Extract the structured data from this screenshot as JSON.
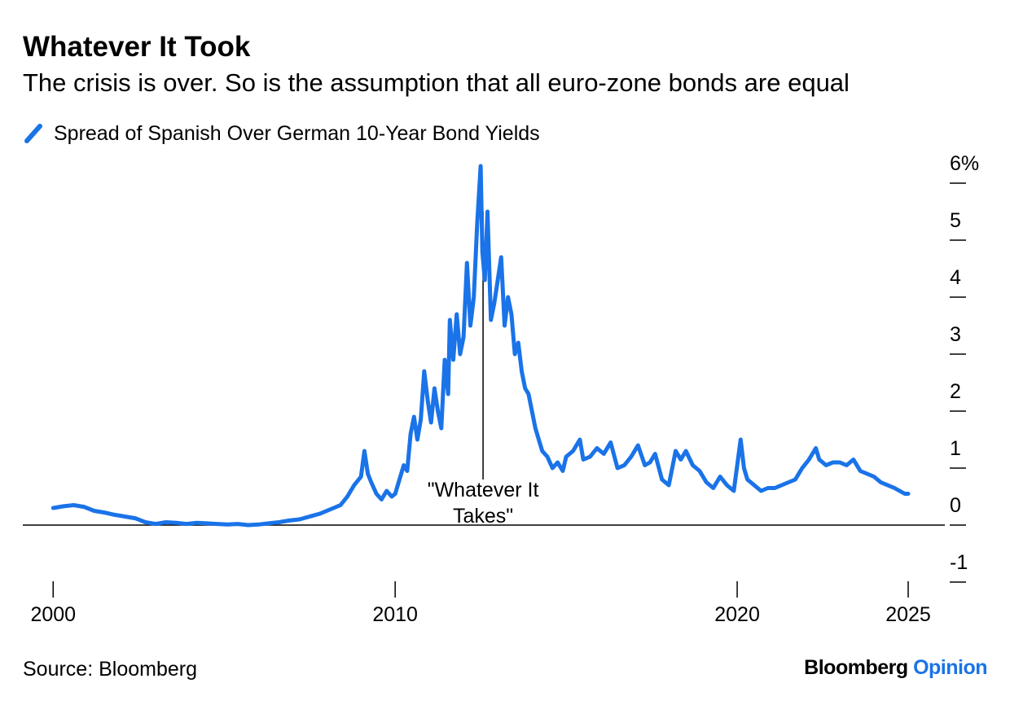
{
  "header": {
    "title": "Whatever It Took",
    "subtitle": "The crisis is over. So is the assumption that all euro-zone bonds are equal"
  },
  "legend": {
    "label": "Spread of Spanish Over German 10-Year Bond Yields"
  },
  "footer": {
    "source": "Source: Bloomberg",
    "brand_primary": "Bloomberg",
    "brand_secondary": "Opinion"
  },
  "colors": {
    "series": "#1a73e8",
    "axis": "#000000"
  },
  "chart_data": {
    "type": "line",
    "title": "Whatever It Took",
    "subtitle": "The crisis is over. So is the assumption that all euro-zone bonds are equal",
    "xlabel": "",
    "ylabel": "",
    "xlim": [
      1999.97,
      2025.0
    ],
    "ylim": [
      -1,
      6
    ],
    "y_axis_side": "right",
    "y_ticks": [
      {
        "value": 6,
        "label": "6%"
      },
      {
        "value": 5,
        "label": "5"
      },
      {
        "value": 4,
        "label": "4"
      },
      {
        "value": 3,
        "label": "3"
      },
      {
        "value": 2,
        "label": "2"
      },
      {
        "value": 1,
        "label": "1"
      },
      {
        "value": 0,
        "label": "0"
      },
      {
        "value": -1,
        "label": "-1"
      }
    ],
    "x_ticks": [
      {
        "value": 2000,
        "label": "2000"
      },
      {
        "value": 2010,
        "label": "2010"
      },
      {
        "value": 2020,
        "label": "2020"
      },
      {
        "value": 2025,
        "label": "2025"
      }
    ],
    "grid": false,
    "legend_position": "top-left",
    "annotations": [
      {
        "text_lines": [
          "\"Whatever It",
          "Takes\""
        ],
        "x": 2012.57,
        "y_top": 5.5,
        "y_bottom": 0.8
      }
    ],
    "series": [
      {
        "name": "Spread of Spanish Over German 10-Year Bond Yields",
        "x": [
          2000.0,
          2000.3,
          2000.6,
          2000.9,
          2001.2,
          2001.5,
          2001.8,
          2002.1,
          2002.4,
          2002.7,
          2003.0,
          2003.3,
          2003.6,
          2003.9,
          2004.2,
          2004.5,
          2004.8,
          2005.1,
          2005.4,
          2005.7,
          2006.0,
          2006.3,
          2006.6,
          2006.9,
          2007.2,
          2007.5,
          2007.8,
          2008.0,
          2008.2,
          2008.4,
          2008.6,
          2008.8,
          2009.0,
          2009.1,
          2009.2,
          2009.3,
          2009.45,
          2009.6,
          2009.75,
          2009.9,
          2010.0,
          2010.1,
          2010.25,
          2010.35,
          2010.45,
          2010.55,
          2010.65,
          2010.75,
          2010.85,
          2010.95,
          2011.05,
          2011.15,
          2011.25,
          2011.35,
          2011.45,
          2011.55,
          2011.6,
          2011.7,
          2011.8,
          2011.9,
          2012.0,
          2012.1,
          2012.2,
          2012.3,
          2012.4,
          2012.5,
          2012.55,
          2012.62,
          2012.7,
          2012.8,
          2012.9,
          2013.0,
          2013.1,
          2013.2,
          2013.3,
          2013.4,
          2013.5,
          2013.6,
          2013.7,
          2013.8,
          2013.9,
          2014.0,
          2014.1,
          2014.2,
          2014.3,
          2014.45,
          2014.6,
          2014.75,
          2014.9,
          2015.0,
          2015.2,
          2015.4,
          2015.5,
          2015.7,
          2015.9,
          2016.1,
          2016.3,
          2016.5,
          2016.7,
          2016.9,
          2017.1,
          2017.3,
          2017.45,
          2017.6,
          2017.8,
          2018.0,
          2018.2,
          2018.35,
          2018.5,
          2018.7,
          2018.9,
          2019.1,
          2019.3,
          2019.5,
          2019.7,
          2019.9,
          2020.1,
          2020.2,
          2020.3,
          2020.5,
          2020.7,
          2020.9,
          2021.1,
          2021.3,
          2021.5,
          2021.7,
          2021.9,
          2022.1,
          2022.3,
          2022.4,
          2022.6,
          2022.8,
          2023.0,
          2023.2,
          2023.4,
          2023.6,
          2023.8,
          2024.0,
          2024.2,
          2024.4,
          2024.6,
          2024.75,
          2024.9,
          2025.0
        ],
        "y": [
          0.3,
          0.33,
          0.35,
          0.32,
          0.25,
          0.22,
          0.18,
          0.15,
          0.12,
          0.05,
          0.02,
          0.05,
          0.04,
          0.02,
          0.04,
          0.03,
          0.02,
          0.01,
          0.02,
          0.0,
          0.01,
          0.03,
          0.05,
          0.08,
          0.1,
          0.15,
          0.2,
          0.25,
          0.3,
          0.35,
          0.5,
          0.7,
          0.85,
          1.3,
          0.9,
          0.75,
          0.55,
          0.45,
          0.6,
          0.5,
          0.55,
          0.75,
          1.05,
          0.95,
          1.6,
          1.9,
          1.5,
          1.85,
          2.7,
          2.2,
          1.8,
          2.4,
          2.0,
          1.7,
          2.9,
          2.3,
          3.6,
          2.9,
          3.7,
          3.0,
          3.3,
          4.6,
          3.5,
          4.0,
          5.3,
          6.3,
          4.8,
          4.3,
          5.5,
          3.6,
          3.9,
          4.3,
          4.7,
          3.5,
          4.0,
          3.7,
          3.0,
          3.2,
          2.7,
          2.4,
          2.3,
          2.0,
          1.7,
          1.5,
          1.3,
          1.2,
          1.0,
          1.1,
          0.95,
          1.2,
          1.3,
          1.5,
          1.15,
          1.2,
          1.35,
          1.25,
          1.45,
          1.0,
          1.05,
          1.2,
          1.4,
          1.05,
          1.1,
          1.25,
          0.8,
          0.7,
          1.3,
          1.15,
          1.3,
          1.05,
          0.95,
          0.75,
          0.65,
          0.85,
          0.7,
          0.6,
          1.5,
          1.0,
          0.8,
          0.7,
          0.6,
          0.65,
          0.65,
          0.7,
          0.75,
          0.8,
          1.0,
          1.15,
          1.35,
          1.15,
          1.05,
          1.1,
          1.1,
          1.05,
          1.15,
          0.95,
          0.9,
          0.85,
          0.75,
          0.7,
          0.65,
          0.6,
          0.55,
          0.55
        ]
      }
    ]
  }
}
